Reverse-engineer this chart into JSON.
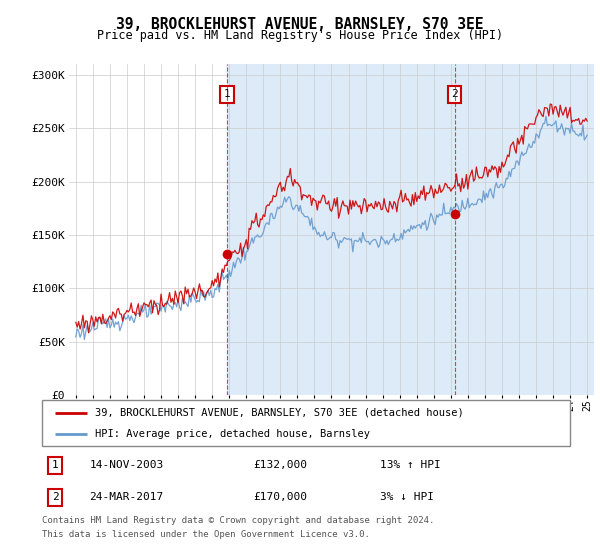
{
  "title": "39, BROCKLEHURST AVENUE, BARNSLEY, S70 3EE",
  "subtitle": "Price paid vs. HM Land Registry's House Price Index (HPI)",
  "legend_line1": "39, BROCKLEHURST AVENUE, BARNSLEY, S70 3EE (detached house)",
  "legend_line2": "HPI: Average price, detached house, Barnsley",
  "transaction1_date": "14-NOV-2003",
  "transaction1_price": "£132,000",
  "transaction1_hpi": "13% ↑ HPI",
  "transaction2_date": "24-MAR-2017",
  "transaction2_price": "£170,000",
  "transaction2_hpi": "3% ↓ HPI",
  "footnote1": "Contains HM Land Registry data © Crown copyright and database right 2024.",
  "footnote2": "This data is licensed under the Open Government Licence v3.0.",
  "red_color": "#cc0000",
  "blue_color": "#6699cc",
  "bg_shaded": "#ddeaf7",
  "bg_white": "#ffffff",
  "marker1_x": 2003.87,
  "marker1_y": 132000,
  "marker2_x": 2017.23,
  "marker2_y": 170000,
  "ylim": [
    0,
    310000
  ],
  "xlim_start": 1994.6,
  "xlim_end": 2025.4,
  "yticks": [
    0,
    50000,
    100000,
    150000,
    200000,
    250000,
    300000
  ],
  "ytick_labels": [
    "£0",
    "£50K",
    "£100K",
    "£150K",
    "£200K",
    "£250K",
    "£300K"
  ]
}
